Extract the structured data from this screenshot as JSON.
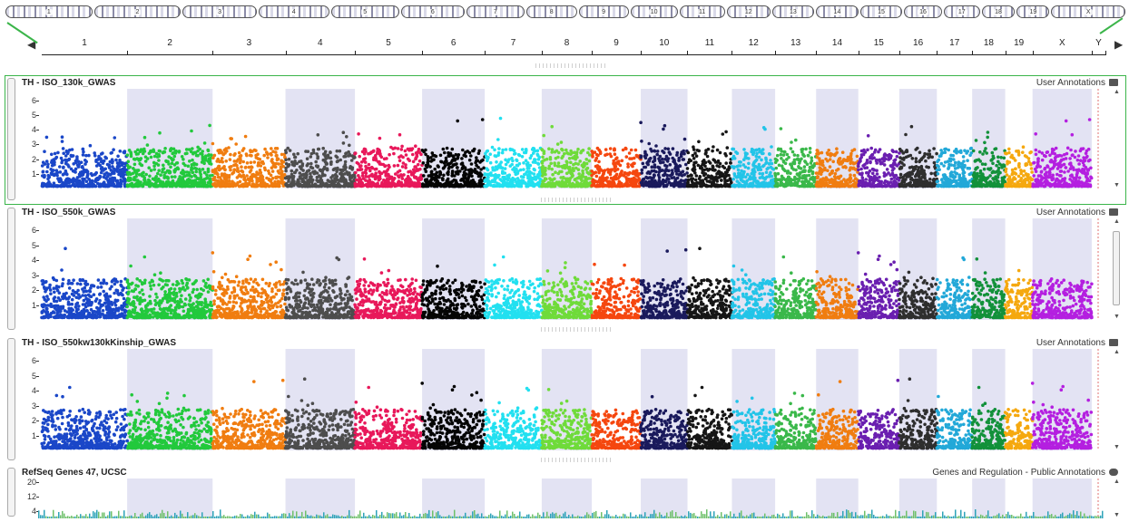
{
  "ideogram": {
    "chromosomes": [
      "1",
      "2",
      "3",
      "4",
      "5",
      "6",
      "7",
      "8",
      "9",
      "10",
      "11",
      "12",
      "13",
      "14",
      "15",
      "16",
      "17",
      "18",
      "19",
      "X",
      "Y"
    ],
    "relative_lengths": [
      7.5,
      7.5,
      6.4,
      6.1,
      5.9,
      5.5,
      5.0,
      4.4,
      4.3,
      4.1,
      3.9,
      3.8,
      3.6,
      3.7,
      3.6,
      3.3,
      3.1,
      2.9,
      2.4,
      5.2,
      1.2
    ],
    "pill_labels": [
      "1",
      "2",
      "3",
      "4",
      "5",
      "6",
      "7",
      "8",
      "9",
      "10",
      "11",
      "12",
      "13",
      "14",
      "15",
      "16",
      "17",
      "18",
      "19",
      "X"
    ],
    "nav_left_label": "◀",
    "nav_right_label": "▶"
  },
  "tracks": [
    {
      "title": "TH - ISO_130k_GWAS",
      "source": "User Annotations",
      "icon": "folder-icon",
      "yticks": [
        "6",
        "5",
        "4",
        "3",
        "2",
        "1"
      ],
      "ymax": 6.8,
      "selected": true
    },
    {
      "title": "TH - ISO_550k_GWAS",
      "source": "User Annotations",
      "icon": "folder-icon",
      "yticks": [
        "6",
        "5",
        "4",
        "3",
        "2",
        "1"
      ],
      "ymax": 6.8,
      "selected": false
    },
    {
      "title": "TH - ISO_550kw130kKinship_GWAS",
      "source": "User Annotations",
      "icon": "folder-icon",
      "yticks": [
        "6",
        "5",
        "4",
        "3",
        "2",
        "1"
      ],
      "ymax": 6.8,
      "selected": false
    },
    {
      "title": "RefSeq Genes 47, UCSC",
      "source": "Genes and Regulation - Public Annotations",
      "icon": "cloud-icon",
      "yticks": [
        "20",
        "12",
        "4"
      ],
      "ymax": 22,
      "selected": false
    }
  ],
  "colors": {
    "chromosomes": [
      "#1a47c8",
      "#22c93c",
      "#f07d10",
      "#4d4d4d",
      "#e8185a",
      "#050505",
      "#22e0f0",
      "#6fdb3a",
      "#f5470f",
      "#1a1a5c",
      "#161616",
      "#22c4e8",
      "#3ab84a",
      "#f07d10",
      "#6a1fb0",
      "#2e2e2e",
      "#22a8d8",
      "#12913a",
      "#f5a80f",
      "#b41fe0",
      "#b41fe0"
    ],
    "band_shade": "#e3e3f3",
    "selected_border": "#3bb54a",
    "refseq_bar": "#2ea3b8",
    "refseq_bar_alt": "#6fc06b"
  }
}
